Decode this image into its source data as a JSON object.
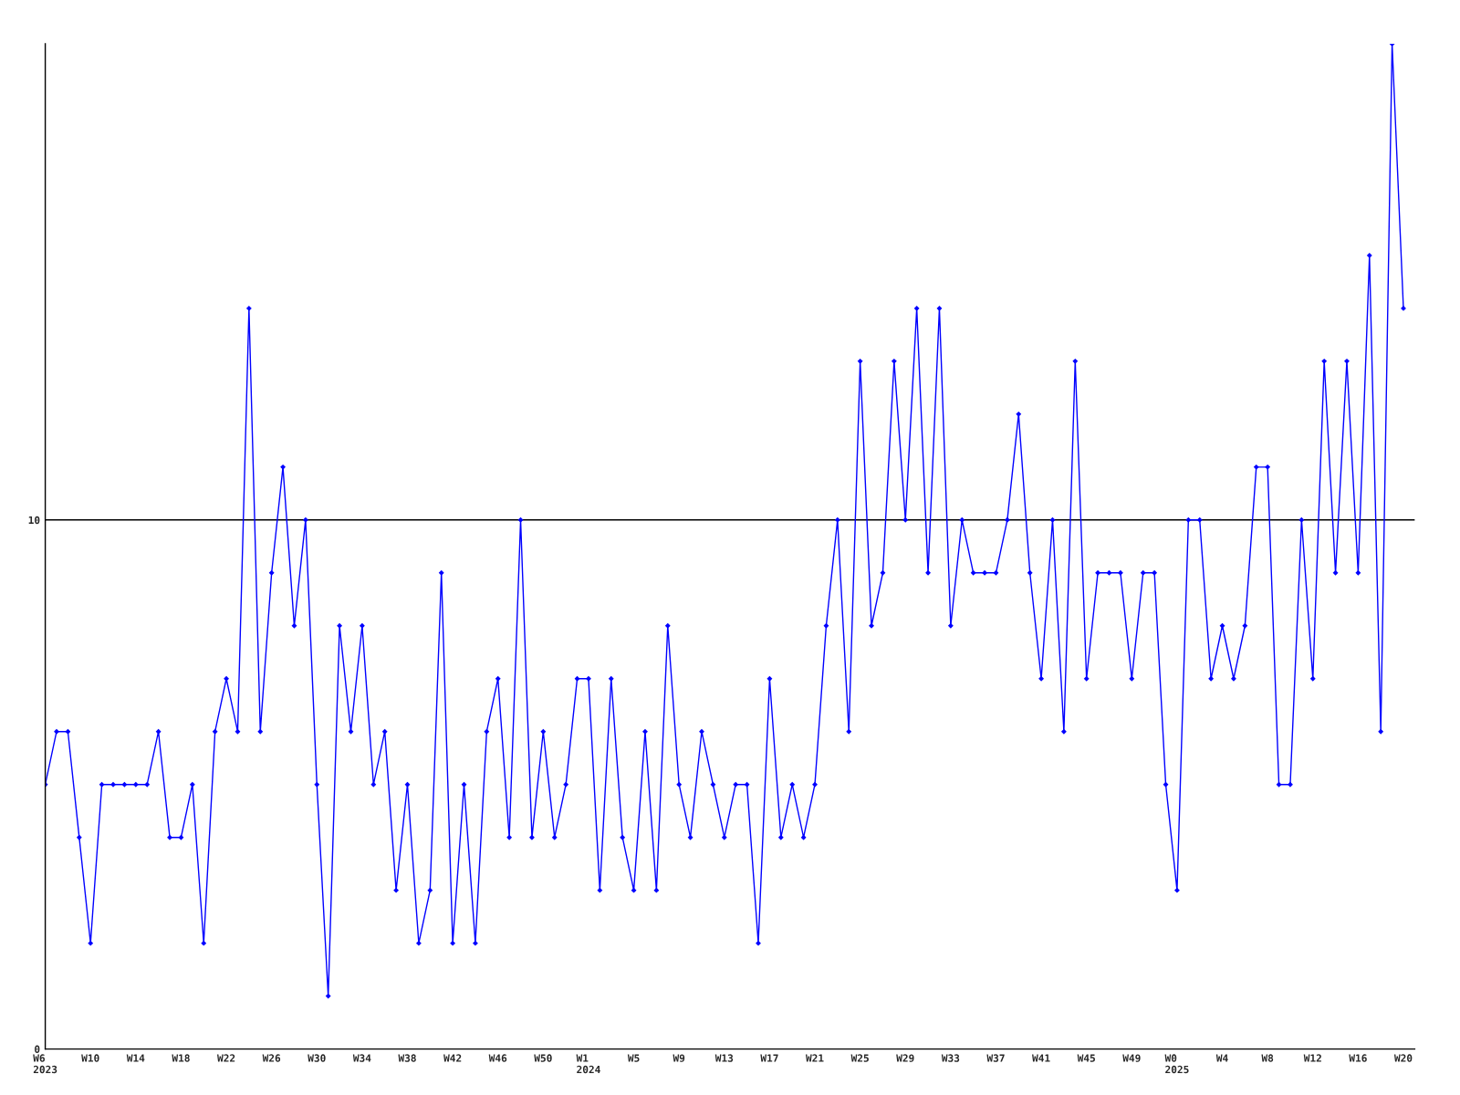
{
  "chart_data": {
    "type": "line",
    "categories": [
      "W6\n2023",
      null,
      null,
      null,
      "W10",
      null,
      null,
      null,
      "W14",
      null,
      null,
      null,
      "W18",
      null,
      null,
      null,
      "W22",
      null,
      null,
      null,
      "W26",
      null,
      null,
      null,
      "W30",
      null,
      null,
      null,
      "W34",
      null,
      null,
      null,
      "W38",
      null,
      null,
      null,
      "W42",
      null,
      null,
      null,
      "W46",
      null,
      null,
      null,
      "W50",
      null,
      null,
      null,
      "W1\n2024",
      null,
      null,
      null,
      "W5",
      null,
      null,
      null,
      "W9",
      null,
      null,
      null,
      "W13",
      null,
      null,
      null,
      "W17",
      null,
      null,
      null,
      "W21",
      null,
      null,
      null,
      "W25",
      null,
      null,
      null,
      "W29",
      null,
      null,
      null,
      "W33",
      null,
      null,
      null,
      "W37",
      null,
      null,
      null,
      "W41",
      null,
      null,
      null,
      "W45",
      null,
      null,
      null,
      "W49",
      null,
      null,
      null,
      "W0\n2025",
      null,
      null,
      null,
      "W4",
      null,
      null,
      null,
      "W8",
      null,
      null,
      null,
      "W12",
      null,
      null,
      null,
      "W16",
      null,
      null,
      null,
      "W20"
    ],
    "series": [
      {
        "color": "#0000ff",
        "values": [
          5,
          6,
          6,
          4,
          2,
          5,
          5,
          5,
          5,
          5,
          6,
          4,
          4,
          5,
          2,
          6,
          7,
          6,
          14,
          6,
          9,
          11,
          8,
          10,
          5,
          1,
          8,
          6,
          8,
          5,
          6,
          3,
          5,
          2,
          3,
          9,
          2,
          5,
          2,
          6,
          7,
          4,
          10,
          4,
          6,
          4,
          5,
          7,
          7,
          3,
          7,
          4,
          3,
          6,
          3,
          8,
          5,
          4,
          6,
          5,
          4,
          5,
          5,
          2,
          7,
          4,
          5,
          4,
          5,
          8,
          10,
          6,
          13,
          8,
          9,
          13,
          10,
          14,
          9,
          14,
          8,
          10,
          9,
          9,
          9,
          10,
          12,
          9,
          7,
          10,
          6,
          13,
          7,
          9,
          9,
          9,
          7,
          9,
          9,
          5,
          3,
          10,
          10,
          7,
          8,
          7,
          8,
          11,
          11,
          5,
          5,
          10,
          7,
          13,
          9,
          13,
          9,
          15,
          6,
          19,
          14
        ]
      }
    ],
    "ylim": [
      0,
      19
    ],
    "yticks": [
      0,
      10
    ],
    "grid": "y",
    "marker": "diamond",
    "line_style": "solid"
  }
}
